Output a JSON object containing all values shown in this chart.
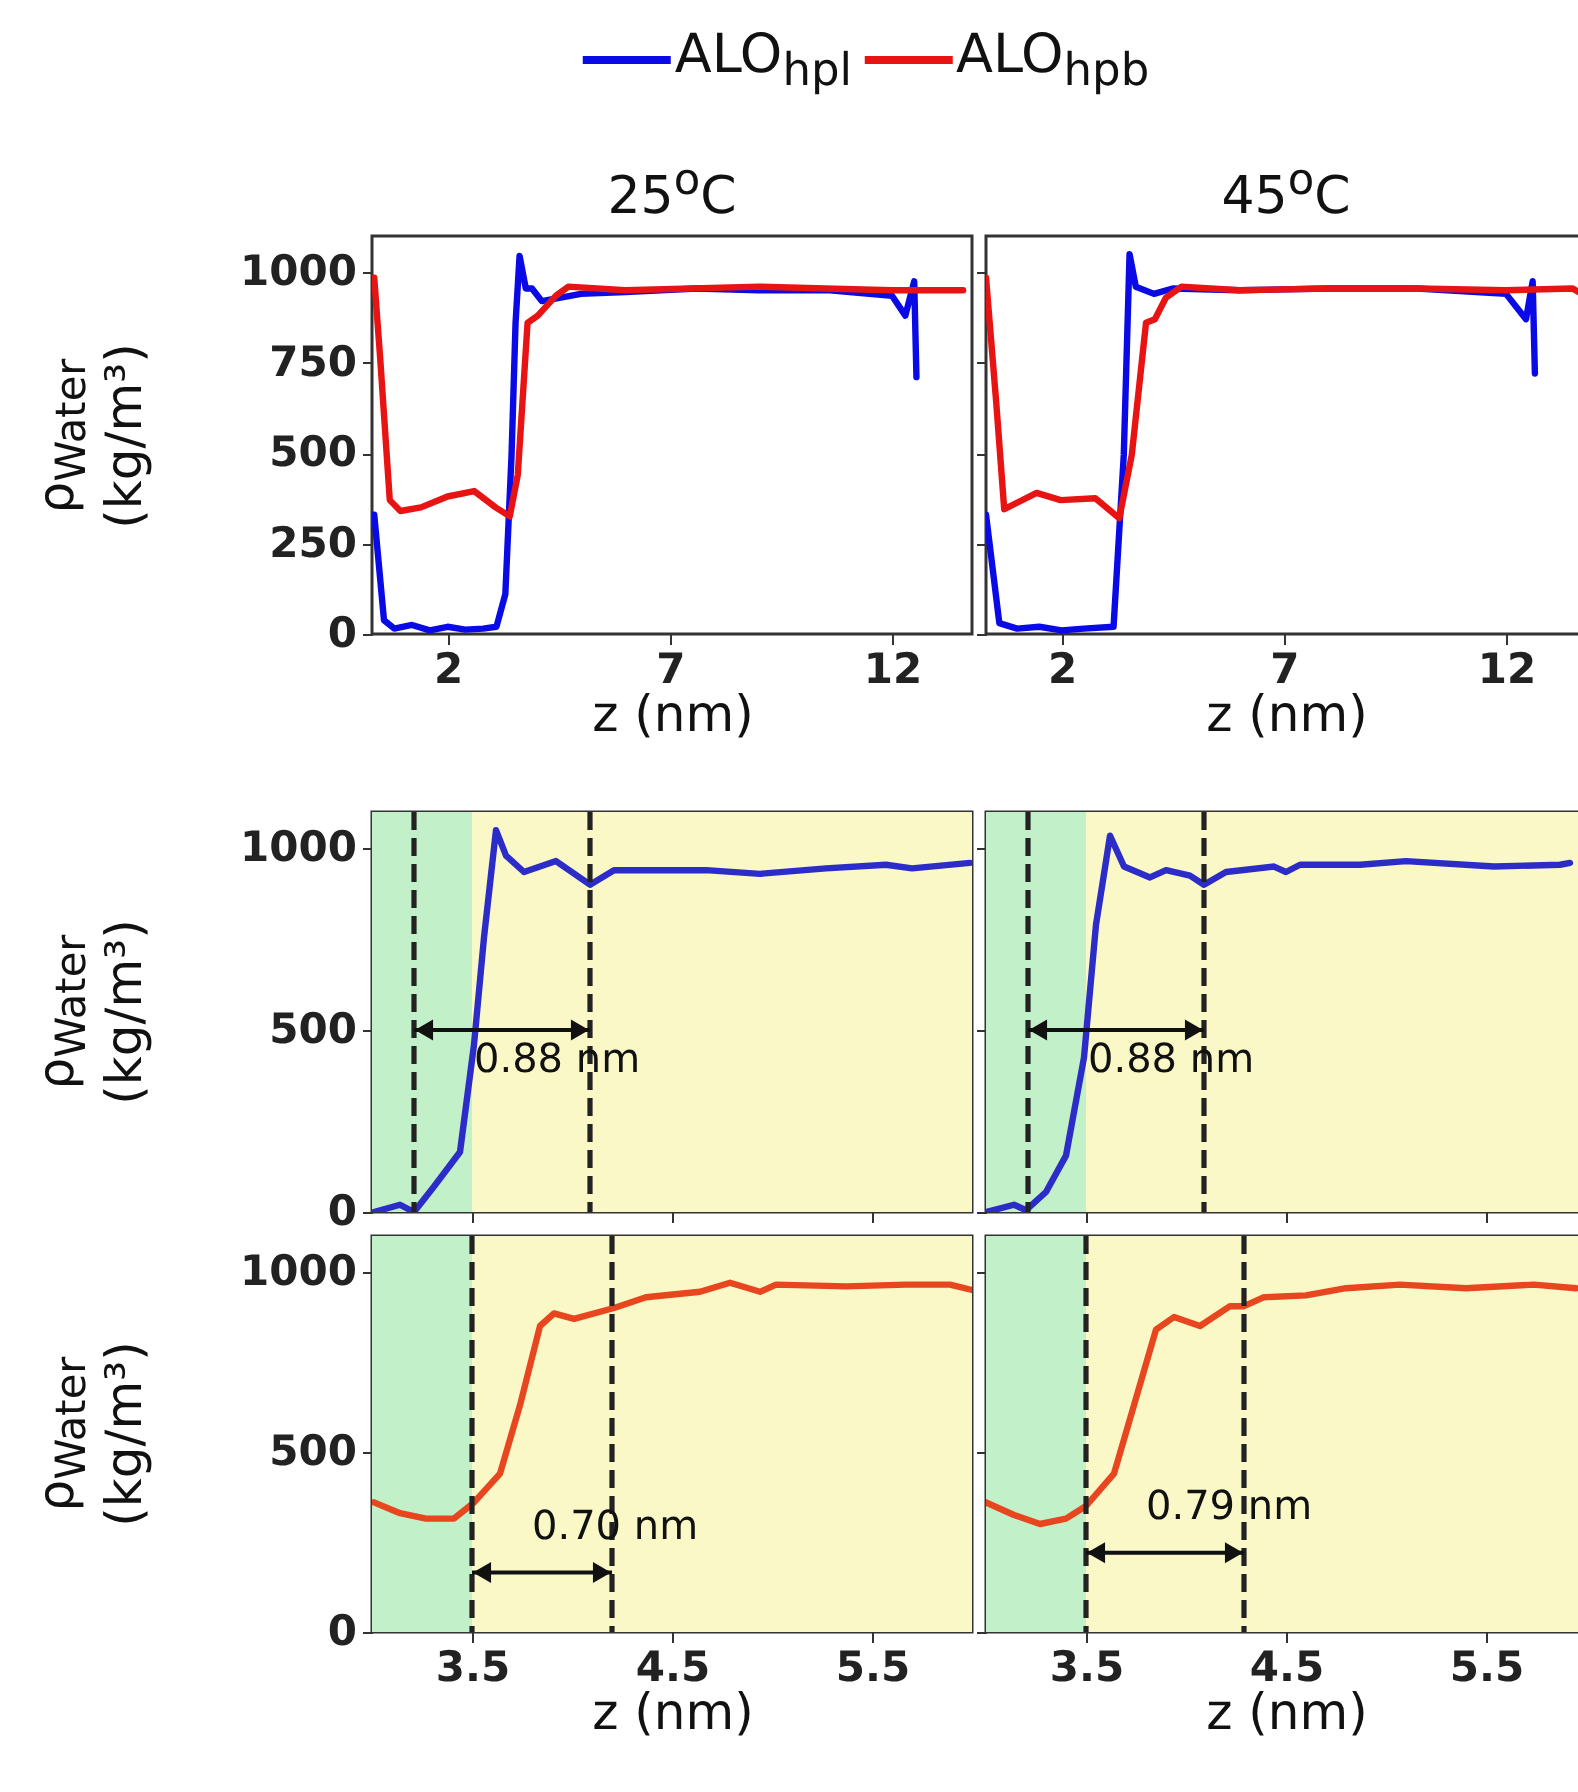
{
  "chart_data": [
    {
      "type": "line",
      "title": "25$^{o}$C",
      "xlabel": "z (nm)",
      "ylabel": "ρ$_{Water}$ (kg/m³)",
      "xlim": [
        0.3,
        13.8
      ],
      "ylim": [
        0,
        1100
      ],
      "xticks": [
        2,
        7,
        12
      ],
      "yticks": [
        0,
        250,
        500,
        750,
        1000
      ],
      "legend": "top",
      "series": [
        {
          "name": "ALO$_{hpl}$",
          "color": "#0a0ae6",
          "x": [
            0.35,
            0.57,
            0.8,
            1.2,
            1.6,
            2.0,
            2.4,
            2.8,
            3.1,
            3.3,
            3.44,
            3.53,
            3.62,
            3.76,
            3.9,
            4.12,
            5.0,
            6.0,
            7.6,
            9.0,
            10.6,
            12.0,
            12.3,
            12.5,
            12.55
          ],
          "values": [
            330,
            38,
            15,
            25,
            10,
            20,
            12,
            15,
            20,
            110,
            495,
            860,
            1045,
            955,
            955,
            920,
            940,
            945,
            955,
            950,
            950,
            935,
            880,
            975,
            710
          ]
        },
        {
          "name": "ALO$_{hpb}$",
          "color": "#e81414",
          "x": [
            0.35,
            0.48,
            0.7,
            0.94,
            1.4,
            2.0,
            2.6,
            3.08,
            3.4,
            3.58,
            3.8,
            4.03,
            4.44,
            4.72,
            6.0,
            7.5,
            9.0,
            10.5,
            12.0,
            13.6
          ],
          "values": [
            985,
            770,
            370,
            340,
            350,
            380,
            395,
            350,
            325,
            440,
            860,
            880,
            935,
            960,
            950,
            955,
            960,
            955,
            950,
            950
          ]
        }
      ]
    },
    {
      "type": "line",
      "title": "45$^{o}$C",
      "xlabel": "z (nm)",
      "xlim": [
        0.3,
        13.8
      ],
      "ylim": [
        0,
        1100
      ],
      "xticks": [
        2,
        7,
        12
      ],
      "yticks": [
        0,
        250,
        500,
        750,
        1000
      ],
      "tick_labels": "x",
      "series": [
        {
          "color": "#0a0ae6",
          "x": [
            0.3,
            0.6,
            1.0,
            1.5,
            2.0,
            2.5,
            3.17,
            3.4,
            3.53,
            3.67,
            4.08,
            4.5,
            6.0,
            8.0,
            10.0,
            12.0,
            12.45,
            12.6,
            12.65
          ],
          "values": [
            330,
            30,
            15,
            20,
            10,
            15,
            20,
            495,
            1050,
            960,
            940,
            955,
            950,
            955,
            955,
            940,
            870,
            975,
            720
          ]
        },
        {
          "color": "#e81414",
          "x": [
            0.3,
            0.53,
            0.71,
            1.44,
            1.98,
            2.76,
            3.3,
            3.58,
            3.9,
            4.1,
            4.35,
            4.7,
            6.0,
            8.0,
            10.0,
            12.0,
            13.5,
            13.7
          ],
          "values": [
            985,
            640,
            345,
            390,
            370,
            375,
            320,
            495,
            860,
            870,
            930,
            960,
            950,
            955,
            955,
            950,
            955,
            940
          ]
        }
      ]
    },
    {
      "type": "line",
      "ylabel": "ρ$_{Water}$ (kg/m³)",
      "xlim": [
        3,
        6
      ],
      "ylim": [
        0,
        1100
      ],
      "xticks": [
        3.5,
        4.5,
        5.5
      ],
      "yticks": [
        0,
        500,
        1000
      ],
      "tick_labels": "y",
      "bands": [
        {
          "axis": "x",
          "from": 3,
          "to": 3.5,
          "color": "#c2f0c8"
        },
        {
          "axis": "x",
          "from": 3.5,
          "to": 6,
          "color": "#fbf8c8"
        }
      ],
      "ref_lines": [
        {
          "axis": "x",
          "value": 3.21,
          "color": "#222222",
          "line_style": "dashed"
        },
        {
          "axis": "x",
          "value": 4.09,
          "color": "#222222",
          "line_style": "dashed"
        }
      ],
      "annotations": [
        "0.88 nm"
      ],
      "series": [
        {
          "color": "#2c2cc8",
          "x": [
            3.01,
            3.14,
            3.21,
            3.31,
            3.44,
            3.51,
            3.56,
            3.62,
            3.67,
            3.76,
            3.92,
            4.09,
            4.21,
            4.44,
            4.67,
            4.94,
            5.27,
            5.57,
            5.7,
            5.99
          ],
          "values": [
            0,
            20,
            0,
            70,
            165,
            460,
            755,
            1050,
            980,
            935,
            965,
            900,
            940,
            940,
            940,
            930,
            945,
            955,
            945,
            960
          ]
        }
      ]
    },
    {
      "type": "line",
      "xlim": [
        3,
        6
      ],
      "ylim": [
        0,
        1100
      ],
      "xticks": [
        3.5,
        4.5,
        5.5
      ],
      "yticks": [
        0,
        500,
        1000
      ],
      "tick_labels": false,
      "bands": [
        {
          "axis": "x",
          "from": 3,
          "to": 3.5,
          "color": "#c2f0c8"
        },
        {
          "axis": "x",
          "from": 3.5,
          "to": 6,
          "color": "#fbf8c8"
        }
      ],
      "ref_lines": [
        {
          "axis": "x",
          "value": 3.21,
          "color": "#222222",
          "line_style": "dashed"
        },
        {
          "axis": "x",
          "value": 4.09,
          "color": "#222222",
          "line_style": "dashed"
        }
      ],
      "annotations": [
        "0.88 nm"
      ],
      "series": [
        {
          "color": "#2c2cc8",
          "x": [
            3.0,
            3.14,
            3.2,
            3.3,
            3.4,
            3.49,
            3.55,
            3.62,
            3.69,
            3.82,
            3.9,
            4.02,
            4.09,
            4.2,
            4.44,
            4.5,
            4.57,
            4.87,
            5.1,
            5.54,
            5.87,
            5.92
          ],
          "values": [
            0,
            20,
            5,
            55,
            155,
            425,
            790,
            1035,
            950,
            920,
            940,
            925,
            900,
            935,
            950,
            935,
            955,
            955,
            965,
            950,
            955,
            960
          ]
        }
      ]
    },
    {
      "type": "line",
      "xlabel": "z (nm)",
      "ylabel": "ρ$_{Water}$ (kg/m³)",
      "xlim": [
        3,
        6
      ],
      "ylim": [
        0,
        1100
      ],
      "xticks": [
        3.5,
        4.5,
        5.5
      ],
      "yticks": [
        0,
        500,
        1000
      ],
      "bands": [
        {
          "axis": "x",
          "from": 3,
          "to": 3.5,
          "color": "#c2f0c8"
        },
        {
          "axis": "x",
          "from": 3.5,
          "to": 6,
          "color": "#fbf8c8"
        }
      ],
      "ref_lines": [
        {
          "axis": "x",
          "value": 3.5,
          "color": "#222222",
          "line_style": "dashed"
        },
        {
          "axis": "x",
          "value": 4.2,
          "color": "#222222",
          "line_style": "dashed"
        }
      ],
      "annotations": [
        {
          "text": "0.70 nm",
          "x": 3.5,
          "y": 165
        }
      ],
      "series": [
        {
          "color": "#e8461e",
          "x": [
            3.01,
            3.14,
            3.27,
            3.41,
            3.51,
            3.64,
            3.74,
            3.84,
            3.91,
            4.01,
            4.21,
            4.37,
            4.64,
            4.79,
            4.94,
            5.02,
            5.37,
            5.67,
            5.89,
            6.0
          ],
          "values": [
            360,
            330,
            315,
            315,
            360,
            440,
            630,
            850,
            885,
            870,
            900,
            930,
            945,
            970,
            945,
            965,
            960,
            965,
            965,
            950
          ]
        }
      ]
    },
    {
      "type": "line",
      "xlabel": "z (nm)",
      "xlim": [
        3,
        6
      ],
      "ylim": [
        0,
        1100
      ],
      "xticks": [
        3.5,
        4.5,
        5.5
      ],
      "yticks": [
        0,
        500,
        1000
      ],
      "tick_labels": "x",
      "bands": [
        {
          "axis": "x",
          "from": 3,
          "to": 3.5,
          "color": "#c2f0c8"
        },
        {
          "axis": "x",
          "from": 3.5,
          "to": 6,
          "color": "#fbf8c8"
        }
      ],
      "ref_lines": [
        {
          "axis": "x",
          "value": 3.5,
          "color": "#222222",
          "line_style": "dashed"
        },
        {
          "axis": "x",
          "value": 4.29,
          "color": "#222222",
          "line_style": "dashed"
        }
      ],
      "annotations": [
        {
          "text": "0.79 nm",
          "x": 3.5,
          "y": 220
        }
      ],
      "series": [
        {
          "color": "#e8461e",
          "x": [
            3.0,
            3.14,
            3.27,
            3.4,
            3.5,
            3.64,
            3.74,
            3.85,
            3.94,
            4.07,
            4.22,
            4.29,
            4.39,
            4.6,
            4.8,
            5.07,
            5.4,
            5.74,
            5.95
          ],
          "values": [
            360,
            325,
            300,
            315,
            350,
            440,
            630,
            840,
            875,
            850,
            905,
            905,
            930,
            935,
            955,
            965,
            955,
            965,
            955
          ]
        }
      ]
    }
  ]
}
